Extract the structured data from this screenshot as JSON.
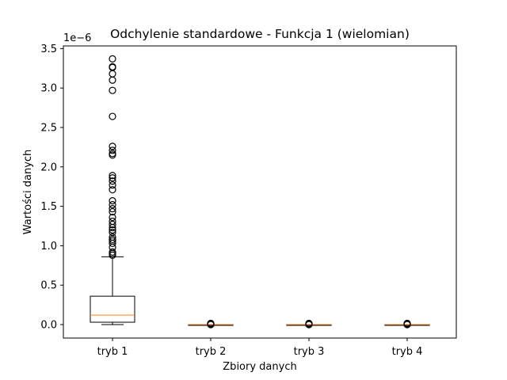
{
  "chart_data": {
    "type": "box",
    "title": "Odchylenie standardowe - Funkcja 1 (wielomian)",
    "xlabel": "Zbiory danych",
    "ylabel": "Wartości danych",
    "offset_label": "1e−6",
    "ylim": [
      -0.17,
      3.5
    ],
    "yticks": [
      0.0,
      0.5,
      1.0,
      1.5,
      2.0,
      2.5,
      3.0,
      3.5
    ],
    "ytick_labels": [
      "0.0",
      "0.5",
      "1.0",
      "1.5",
      "2.0",
      "2.5",
      "3.0",
      "3.5"
    ],
    "categories": [
      "tryb 1",
      "tryb 2",
      "tryb 3",
      "tryb 4"
    ],
    "median_color": "#ff7f0e",
    "box_color": "#000000",
    "boxes": [
      {
        "name": "tryb 1",
        "whisker_low": 0.0,
        "q1": 0.03,
        "median": 0.12,
        "q3": 0.36,
        "whisker_high": 0.86,
        "outliers": [
          0.88,
          0.9,
          0.92,
          0.98,
          1.03,
          1.06,
          1.08,
          1.11,
          1.17,
          1.2,
          1.23,
          1.27,
          1.31,
          1.36,
          1.43,
          1.47,
          1.52,
          1.57,
          1.71,
          1.77,
          1.82,
          1.86,
          1.89,
          2.15,
          2.17,
          2.21,
          2.26,
          2.64,
          2.97,
          3.1,
          3.18,
          3.26,
          3.27,
          3.37
        ]
      },
      {
        "name": "tryb 2",
        "whisker_low": 0.0,
        "q1": 0.0,
        "median": 0.0,
        "q3": 0.0,
        "whisker_high": 0.0,
        "outliers": [
          0.0,
          0.005,
          0.01,
          0.015
        ]
      },
      {
        "name": "tryb 3",
        "whisker_low": 0.0,
        "q1": 0.0,
        "median": 0.0,
        "q3": 0.0,
        "whisker_high": 0.0,
        "outliers": [
          0.0,
          0.005,
          0.01,
          0.015
        ]
      },
      {
        "name": "tryb 4",
        "whisker_low": 0.0,
        "q1": 0.0,
        "median": 0.0,
        "q3": 0.0,
        "whisker_high": 0.0,
        "outliers": [
          0.0,
          0.005,
          0.01,
          0.015
        ]
      }
    ]
  }
}
